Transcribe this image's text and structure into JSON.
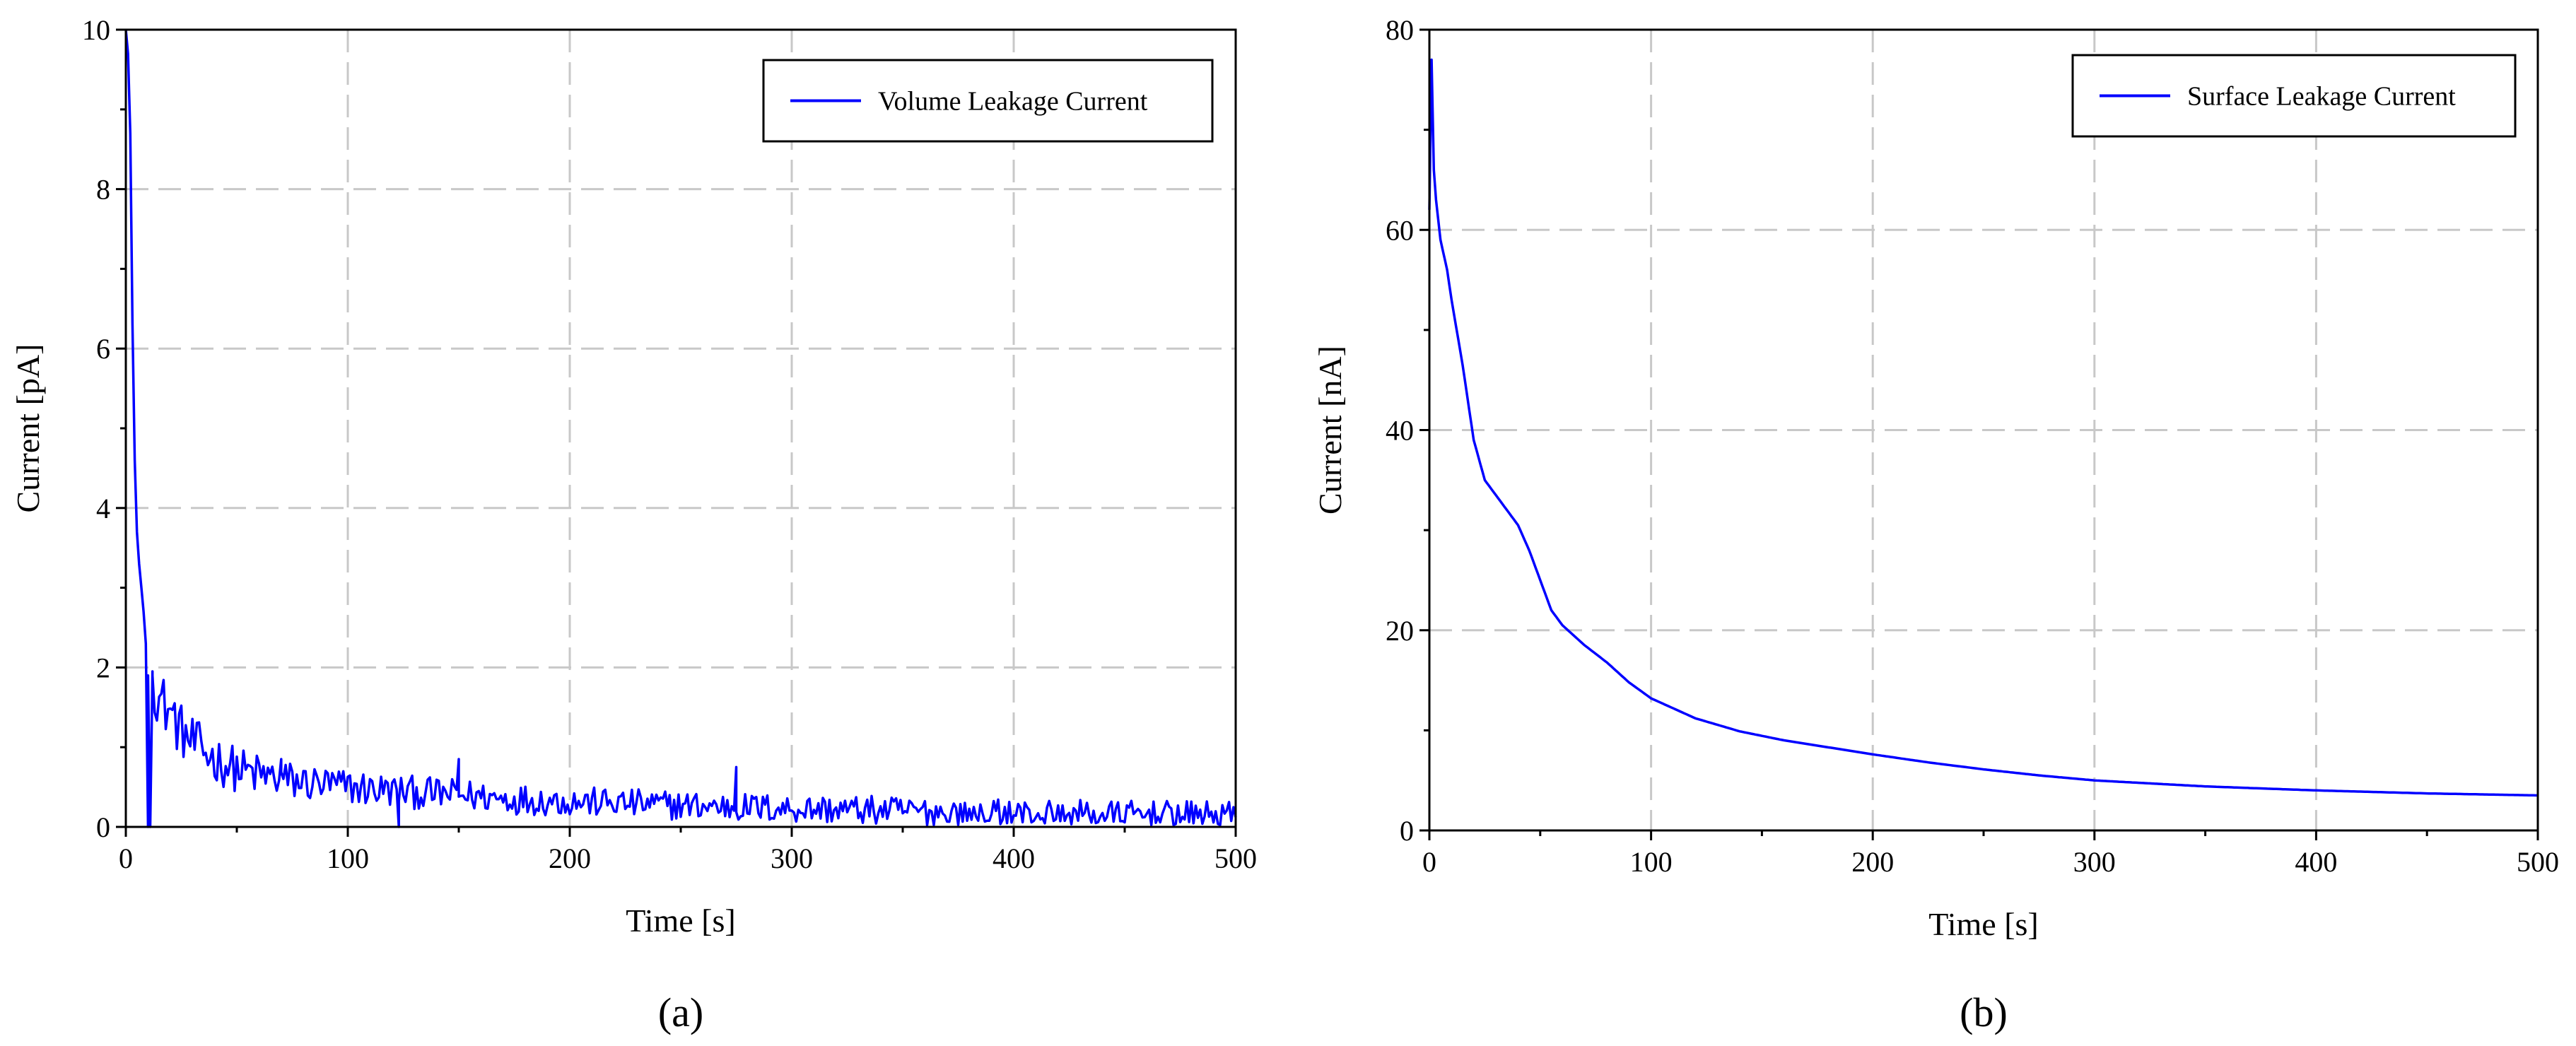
{
  "chart_data": [
    {
      "type": "line",
      "panel_label": "(a)",
      "xlabel": "Time [s]",
      "ylabel": "Current [pA]",
      "xlim": [
        0,
        500
      ],
      "ylim": [
        0,
        10
      ],
      "xticks": [
        0,
        100,
        200,
        300,
        400,
        500
      ],
      "yticks": [
        0,
        2,
        4,
        6,
        8,
        10
      ],
      "grid": true,
      "legend_position": "top-right",
      "series": [
        {
          "name": "Volume Leakage Current",
          "color": "#0000ff",
          "noisy": true,
          "points": [
            [
              0,
              10
            ],
            [
              1,
              9.7
            ],
            [
              2,
              8.7
            ],
            [
              3,
              6.3
            ],
            [
              4,
              4.6
            ],
            [
              5,
              3.7
            ],
            [
              6,
              3.3
            ],
            [
              7,
              3.0
            ],
            [
              8,
              2.7
            ],
            [
              9,
              2.3
            ],
            [
              10,
              1.9
            ],
            [
              11,
              0
            ],
            [
              12,
              1.9
            ],
            [
              15,
              1.6
            ],
            [
              20,
              1.45
            ],
            [
              25,
              1.2
            ],
            [
              30,
              1.05
            ],
            [
              40,
              0.85
            ],
            [
              50,
              0.72
            ],
            [
              60,
              0.65
            ],
            [
              75,
              0.57
            ],
            [
              100,
              0.5
            ],
            [
              125,
              0.44
            ],
            [
              150,
              0.4
            ],
            [
              175,
              0.35
            ],
            [
              200,
              0.32
            ],
            [
              250,
              0.27
            ],
            [
              300,
              0.23
            ],
            [
              350,
              0.2
            ],
            [
              400,
              0.17
            ],
            [
              450,
              0.15
            ],
            [
              500,
              0.14
            ]
          ],
          "spikes": [
            [
              10,
              0
            ],
            [
              12,
              1.95
            ],
            [
              70,
              0.85
            ],
            [
              123,
              0
            ],
            [
              150,
              0.85
            ],
            [
              275,
              0.75
            ]
          ]
        }
      ]
    },
    {
      "type": "line",
      "panel_label": "(b)",
      "xlabel": "Time [s]",
      "ylabel": "Current [nA]",
      "xlim": [
        0,
        500
      ],
      "ylim": [
        0,
        80
      ],
      "xticks": [
        0,
        100,
        200,
        300,
        400,
        500
      ],
      "yticks": [
        0,
        20,
        40,
        60,
        80
      ],
      "grid": true,
      "legend_position": "top-right",
      "series": [
        {
          "name": "Surface Leakage Current",
          "color": "#0000ff",
          "noisy": false,
          "points": [
            [
              0,
              62
            ],
            [
              1,
              77
            ],
            [
              2,
              66
            ],
            [
              3,
              63
            ],
            [
              5,
              59
            ],
            [
              8,
              56
            ],
            [
              10,
              53
            ],
            [
              15,
              46.5
            ],
            [
              20,
              39
            ],
            [
              25,
              35
            ],
            [
              30,
              33.5
            ],
            [
              35,
              32
            ],
            [
              40,
              30.5
            ],
            [
              45,
              28
            ],
            [
              50,
              25
            ],
            [
              55,
              22
            ],
            [
              60,
              20.5
            ],
            [
              70,
              18.5
            ],
            [
              80,
              16.8
            ],
            [
              90,
              14.8
            ],
            [
              100,
              13.2
            ],
            [
              120,
              11.2
            ],
            [
              140,
              9.9
            ],
            [
              160,
              9.0
            ],
            [
              180,
              8.3
            ],
            [
              200,
              7.6
            ],
            [
              225,
              6.8
            ],
            [
              250,
              6.1
            ],
            [
              275,
              5.5
            ],
            [
              300,
              5.0
            ],
            [
              350,
              4.4
            ],
            [
              400,
              4.0
            ],
            [
              450,
              3.7
            ],
            [
              500,
              3.5
            ]
          ],
          "spikes": []
        }
      ]
    }
  ]
}
